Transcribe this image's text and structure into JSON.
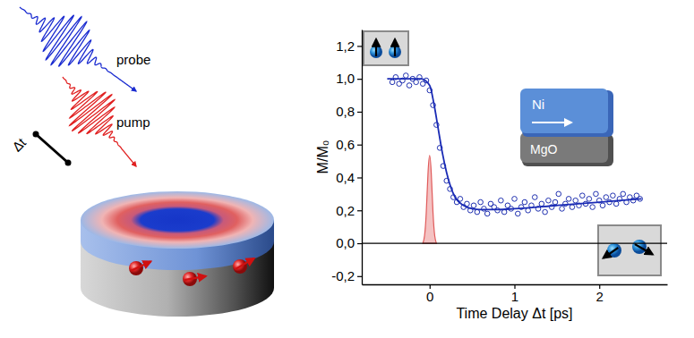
{
  "chart_data": {
    "type": "scatter",
    "xlabel": "Time Delay Δt [ps]",
    "ylabel": "M/M₀",
    "xlim": [
      -0.8,
      2.8
    ],
    "ylim": [
      -0.25,
      1.3
    ],
    "xticks": [
      0,
      1,
      2
    ],
    "yticks": [
      {
        "value": -0.2,
        "label": "-0,2"
      },
      {
        "value": 0,
        "label": "0,0"
      },
      {
        "value": 0.2,
        "label": "0,2"
      },
      {
        "value": 0.4,
        "label": "0,4"
      },
      {
        "value": 0.6,
        "label": "0,6"
      },
      {
        "value": 0.8,
        "label": "0,8"
      },
      {
        "value": 1.0,
        "label": "1,0"
      },
      {
        "value": 1.2,
        "label": "1,2"
      }
    ],
    "grid": false,
    "annotations": [
      "probe",
      "pump",
      "Δt",
      "Ni",
      "MgO"
    ],
    "series": [
      {
        "type": "scatter",
        "color": "#1f30b0",
        "marker": "circle",
        "x": [
          -0.44,
          -0.4,
          -0.36,
          -0.32,
          -0.28,
          -0.24,
          -0.2,
          -0.16,
          -0.12,
          -0.08,
          -0.04,
          0.0,
          0.04,
          0.08,
          0.12,
          0.16,
          0.2,
          0.24,
          0.28,
          0.32,
          0.36,
          0.4,
          0.44,
          0.48,
          0.52,
          0.56,
          0.6,
          0.64,
          0.68,
          0.72,
          0.76,
          0.8,
          0.84,
          0.88,
          0.92,
          0.96,
          1.0,
          1.04,
          1.08,
          1.12,
          1.16,
          1.2,
          1.24,
          1.28,
          1.32,
          1.36,
          1.4,
          1.44,
          1.48,
          1.52,
          1.56,
          1.6,
          1.64,
          1.68,
          1.72,
          1.76,
          1.8,
          1.84,
          1.88,
          1.92,
          1.96,
          2.0,
          2.04,
          2.08,
          2.12,
          2.16,
          2.2,
          2.24,
          2.28,
          2.32,
          2.36,
          2.4,
          2.44,
          2.48
        ],
        "values": [
          0.98,
          1.01,
          0.97,
          0.99,
          1.02,
          0.96,
          1.0,
          0.98,
          1.01,
          0.97,
          0.99,
          0.93,
          0.84,
          0.72,
          0.58,
          0.47,
          0.38,
          0.33,
          0.28,
          0.25,
          0.27,
          0.22,
          0.24,
          0.2,
          0.23,
          0.19,
          0.25,
          0.21,
          0.18,
          0.24,
          0.22,
          0.2,
          0.26,
          0.19,
          0.23,
          0.21,
          0.27,
          0.18,
          0.22,
          0.25,
          0.2,
          0.23,
          0.28,
          0.21,
          0.24,
          0.19,
          0.26,
          0.22,
          0.25,
          0.3,
          0.21,
          0.24,
          0.27,
          0.22,
          0.26,
          0.23,
          0.29,
          0.24,
          0.27,
          0.22,
          0.3,
          0.26,
          0.23,
          0.28,
          0.25,
          0.29,
          0.24,
          0.27,
          0.3,
          0.25,
          0.28,
          0.26,
          0.29,
          0.27
        ]
      },
      {
        "type": "line",
        "color": "#1a2bb5",
        "line_style": "solid",
        "x": [
          -0.5,
          -0.1,
          0,
          0.05,
          0.1,
          0.15,
          0.2,
          0.25,
          0.3,
          0.4,
          0.5,
          0.6,
          0.8,
          1.0,
          1.5,
          2.0,
          2.5
        ],
        "values": [
          1.0,
          1.0,
          0.96,
          0.85,
          0.7,
          0.55,
          0.43,
          0.34,
          0.28,
          0.23,
          0.21,
          0.205,
          0.205,
          0.21,
          0.23,
          0.25,
          0.27
        ]
      },
      {
        "type": "area",
        "color": "#e05a5a",
        "x": [
          -0.08,
          -0.06,
          -0.04,
          -0.02,
          0,
          0.02,
          0.04,
          0.06,
          0.08
        ],
        "values": [
          0,
          0.03,
          0.16,
          0.44,
          0.58,
          0.44,
          0.16,
          0.03,
          0
        ]
      }
    ]
  }
}
